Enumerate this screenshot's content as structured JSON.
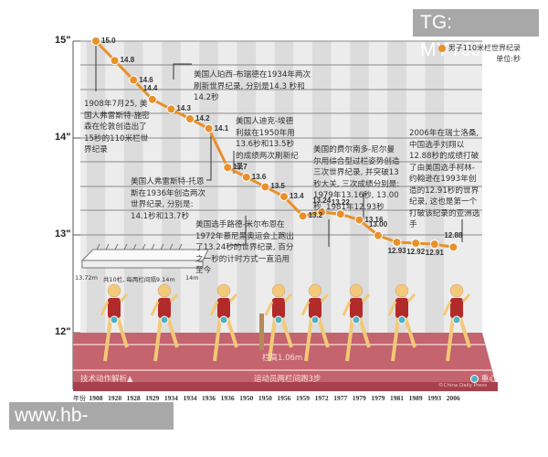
{
  "watermarks": {
    "top": "TG: MYYJJPP",
    "bottom": "www.hb-mesh.com"
  },
  "legend": {
    "series": "男子110米栏世界纪录",
    "unit": "单位:秒",
    "color": "#e8902a"
  },
  "y_ticks": [
    "15\"",
    "14\"",
    "13\"",
    "12\""
  ],
  "annotations": {
    "a1908": "1908年7月25, 美国人弗雷斯特-施密森在伦敦创造出了15秒的110米栏世界纪录",
    "a1934": "美国人珀西-布瑞德在1934年两次刷新世界纪录, 分别是14.3 秒和14.2秒",
    "a1936": "美国人弗雷斯特-托恩斯在1936年创造两次世界纪录, 分别是: 14.1秒和13.7秒",
    "a1950": "美国人迪克-埃德利兹在1950年用13.6秒和13.5秒的成绩两次刷新纪录",
    "a1972": "美国选手路德-米尔布恩在1972年慕尼黑奥运会上跑出了13.24秒的世界纪录, 百分之一秒的计时方式一直沿用至今",
    "a1979": "美国的费尔南多-尼尔曼尔用综合型过栏姿势创造三次世界纪录, 并突破13秒大关, 三次成绩分别是: 1979年13.16秒, 13.00秒, 1981年12.93秒",
    "a2006": "2006年在瑞士洛桑, 中国选手刘翔以12.88秒的成绩打破了由美国选手柯林-约翰逊在1993年创造的12.91秒的世界纪录, 这也是第一个打破该纪录的亚洲选手"
  },
  "hurdle_diagram": {
    "start": "13.72m",
    "middle": "共10栏, 每两栏间隔9.14m",
    "end": "14m"
  },
  "track": {
    "technique": "技术动作解析▲",
    "hurdle_height": "栏高1.06m",
    "steps": "运动员两栏间跑3步",
    "center_of_gravity": "重心",
    "credit": "©China Daily Press"
  },
  "x_axis_label": "年份",
  "chart_data": {
    "type": "line",
    "title": "男子110米栏世界纪录",
    "xlabel": "年份",
    "ylabel": "单位:秒",
    "ylim": [
      12,
      15
    ],
    "grid": true,
    "legend_position": "top-right",
    "categories": [
      "1908",
      "1920",
      "1928",
      "1929",
      "1934",
      "1934",
      "1936",
      "1936",
      "1950",
      "1950",
      "1956",
      "1959",
      "1972",
      "1977",
      "1979",
      "1979",
      "1981",
      "1989",
      "1993",
      "2006"
    ],
    "series": [
      {
        "name": "男子110米栏世界纪录",
        "values": [
          15.0,
          14.8,
          14.6,
          14.4,
          14.3,
          14.2,
          14.1,
          13.7,
          13.6,
          13.5,
          13.4,
          13.2,
          13.24,
          13.22,
          13.16,
          13.0,
          12.93,
          12.92,
          12.91,
          12.88
        ],
        "labels": [
          "15.0",
          "14.8",
          "14.6",
          "14.4",
          "14.3",
          "14.2",
          "14.1",
          "13.7",
          "13.6",
          "13.5",
          "13.4",
          "13.2",
          "13.24",
          "13.22",
          "13.16",
          "13.00",
          "12.93",
          "12.92",
          "12.91",
          "12.88"
        ]
      }
    ]
  }
}
